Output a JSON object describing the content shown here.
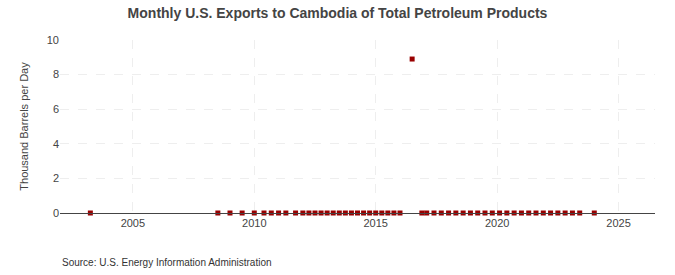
{
  "chart_data": {
    "type": "scatter",
    "title": "Monthly U.S. Exports to Cambodia of Total Petroleum Products",
    "ylabel": "Thousand Barrels per Day",
    "annotations": [
      "Source: U.S. Energy Information Administration"
    ],
    "x": [
      2003.25,
      2008.5,
      2009.0,
      2009.5,
      2010.0,
      2010.4,
      2010.7,
      2011.0,
      2011.3,
      2011.7,
      2012.0,
      2012.25,
      2012.5,
      2012.75,
      2013.0,
      2013.25,
      2013.5,
      2013.75,
      2014.0,
      2014.25,
      2014.5,
      2014.75,
      2015.0,
      2015.25,
      2015.5,
      2015.75,
      2016.0,
      2016.5,
      2016.9,
      2017.1,
      2017.4,
      2017.7,
      2018.0,
      2018.3,
      2018.6,
      2018.9,
      2019.2,
      2019.5,
      2019.8,
      2020.1,
      2020.4,
      2020.7,
      2021.0,
      2021.3,
      2021.6,
      2021.9,
      2022.2,
      2022.5,
      2022.8,
      2023.1,
      2023.4,
      2024.0
    ],
    "values": [
      0.0,
      0.0,
      0.0,
      0.0,
      0.0,
      0.0,
      0.0,
      0.0,
      0.0,
      0.0,
      0.0,
      0.0,
      0.0,
      0.0,
      0.0,
      0.0,
      0.0,
      0.0,
      0.0,
      0.0,
      0.0,
      0.0,
      0.0,
      0.0,
      0.0,
      0.0,
      0.0,
      8.9,
      0.0,
      0.0,
      0.0,
      0.0,
      0.0,
      0.0,
      0.0,
      0.0,
      0.0,
      0.0,
      0.0,
      0.0,
      0.0,
      0.0,
      0.0,
      0.0,
      0.0,
      0.0,
      0.0,
      0.0,
      0.0,
      0.0,
      0.0,
      0.0
    ],
    "color": "#990000",
    "marker": "square",
    "xlim": [
      2002.0,
      2026.5
    ],
    "ylim": [
      0,
      10
    ],
    "xticks": [
      2005,
      2010,
      2015,
      2020,
      2025
    ],
    "yticks": [
      0,
      2,
      4,
      6,
      8,
      10
    ],
    "grid": true
  }
}
